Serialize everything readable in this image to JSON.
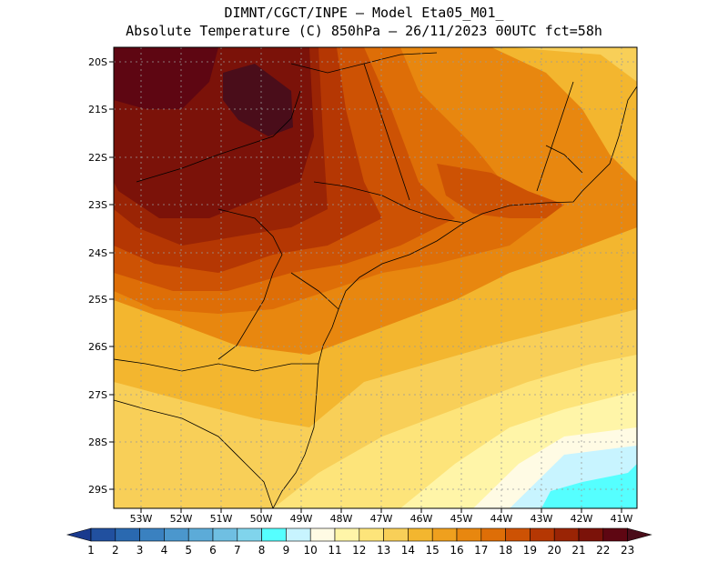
{
  "header": {
    "line1": "DIMNT/CGCT/INPE —  Model Eta05_M01_",
    "line2": "Absolute Temperature (C) 850hPa —  26/11/2023 00UTC fct=58h"
  },
  "map": {
    "lat_labels": [
      "20S",
      "21S",
      "22S",
      "23S",
      "24S",
      "25S",
      "26S",
      "27S",
      "28S",
      "29S"
    ],
    "lon_labels": [
      "53W",
      "52W",
      "51W",
      "50W",
      "49W",
      "48W",
      "47W",
      "46W",
      "45W",
      "44W",
      "43W",
      "42W",
      "41W"
    ]
  },
  "colorbar": {
    "labels": [
      "1",
      "2",
      "3",
      "4",
      "5",
      "6",
      "7",
      "8",
      "9",
      "10",
      "11",
      "12",
      "13",
      "14",
      "15",
      "16",
      "17",
      "18",
      "19",
      "20",
      "21",
      "22",
      "23"
    ],
    "colors": [
      "#1a3a8e",
      "#21509f",
      "#2a69b0",
      "#3a81c0",
      "#4b97cd",
      "#5cabd8",
      "#6fbfe2",
      "#80d4ec",
      "#55ffff",
      "#c8f4ff",
      "#fffbe4",
      "#fff5a8",
      "#fde47a",
      "#f8cf58",
      "#f3b62f",
      "#efa01e",
      "#e8870f",
      "#de6e07",
      "#cd5204",
      "#b53703",
      "#9a2405",
      "#7b1209",
      "#5e0612",
      "#4a0d1a"
    ]
  }
}
